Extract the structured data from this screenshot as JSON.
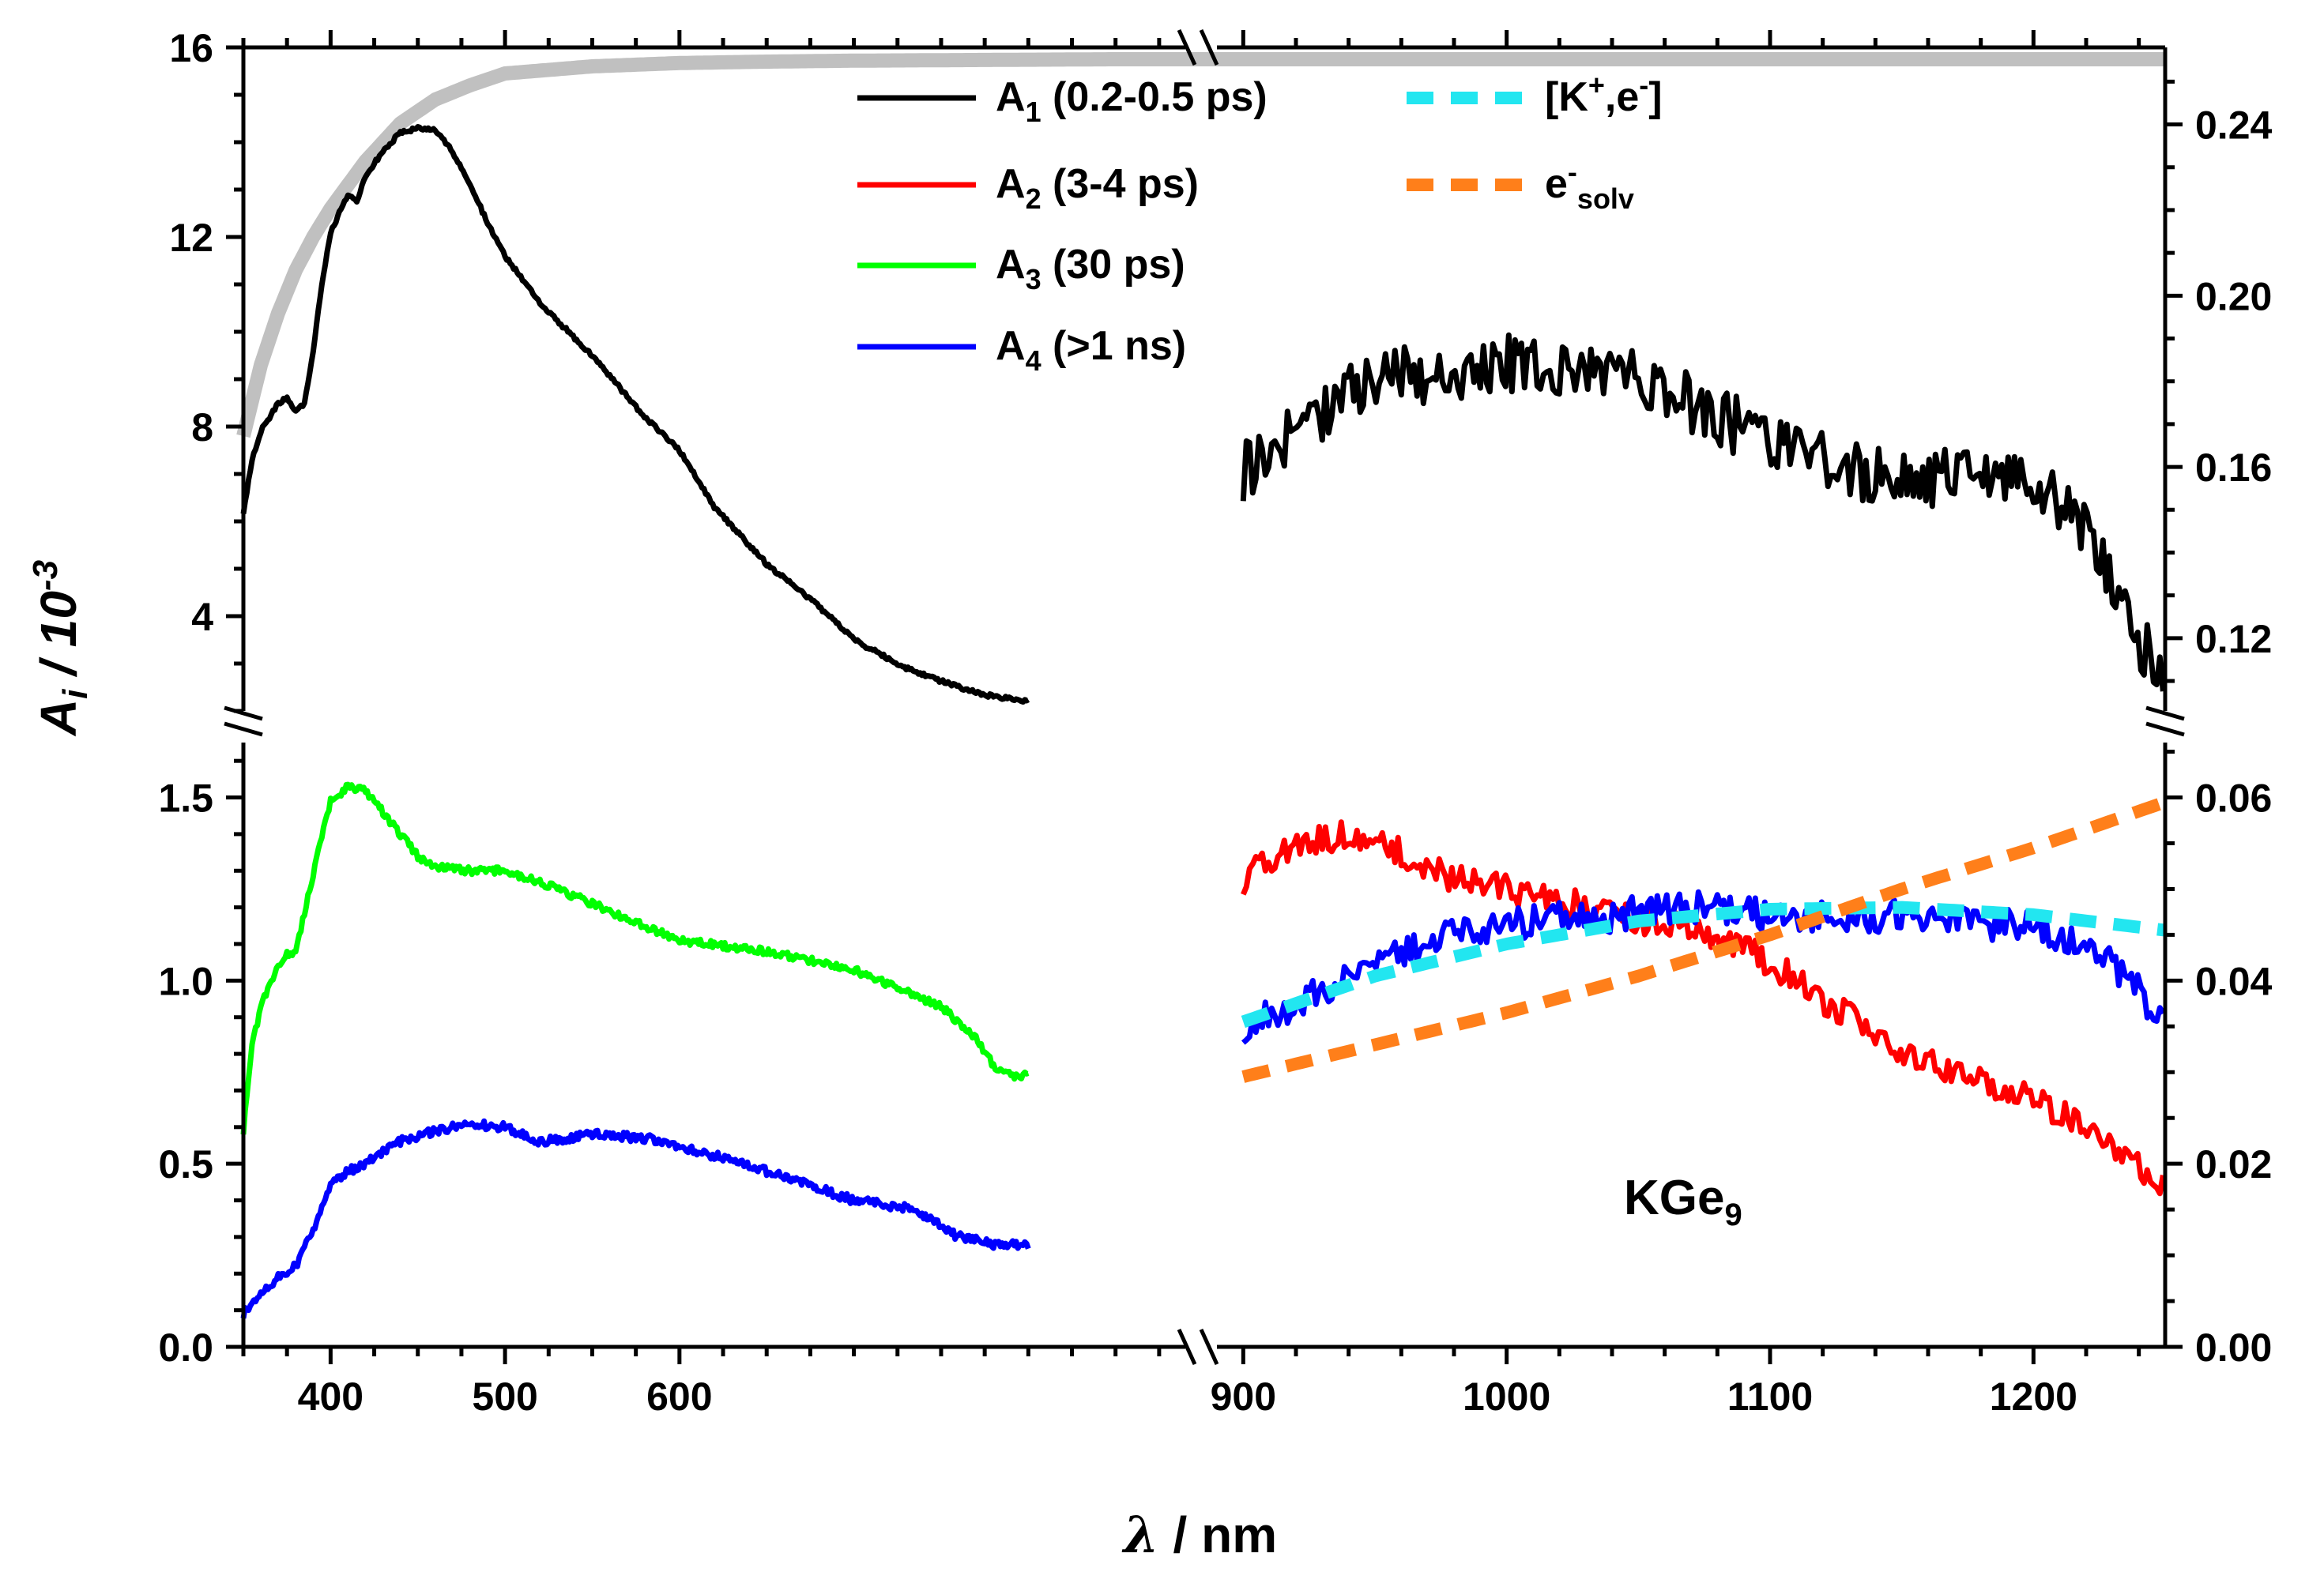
{
  "chart_data": {
    "type": "line",
    "title": "",
    "annotation": {
      "main": "KGe",
      "sub": "9"
    },
    "xlabel": {
      "symbol": "λ",
      "rest": " / nm"
    },
    "ylabel": {
      "symbol": "A",
      "sub": "i",
      "rest": " / 10",
      "sup": "-3"
    },
    "x_segments": [
      {
        "range": [
          350,
          890
        ],
        "ticks": [
          "400",
          "500",
          "600"
        ],
        "tick_values": [
          400,
          500,
          600
        ]
      },
      {
        "range": [
          890,
          1250
        ],
        "ticks": [
          "900",
          "1000",
          "1100",
          "1200"
        ],
        "tick_values": [
          900,
          1000,
          1100,
          1200
        ]
      }
    ],
    "y_left_upper": {
      "range": [
        2,
        16
      ],
      "ticks": [
        "4",
        "8",
        "12",
        "16"
      ],
      "tick_values": [
        4,
        8,
        12,
        16
      ]
    },
    "y_left_lower": {
      "range": [
        0,
        1.65
      ],
      "ticks": [
        "0.0",
        "0.5",
        "1.0",
        "1.5"
      ],
      "tick_values": [
        0,
        0.5,
        1.0,
        1.5
      ]
    },
    "y_right_upper": {
      "range": [
        0.103,
        0.258
      ],
      "ticks": [
        "0.12",
        "0.16",
        "0.20",
        "0.24"
      ],
      "tick_values": [
        0.12,
        0.16,
        0.2,
        0.24
      ]
    },
    "y_right_lower": {
      "range": [
        0,
        0.066
      ],
      "ticks": [
        "0.00",
        "0.02",
        "0.04",
        "0.06"
      ],
      "tick_values": [
        0,
        0.02,
        0.04,
        0.06
      ]
    },
    "legend": [
      {
        "key": "A1",
        "main": "A",
        "sub": "1",
        "rest": " (0.2-0.5 ps)",
        "color": "#000000",
        "style": "solid"
      },
      {
        "key": "A2",
        "main": "A",
        "sub": "2",
        "rest": " (3-4 ps)",
        "color": "#ff0000",
        "style": "solid"
      },
      {
        "key": "A3",
        "main": "A",
        "sub": "3",
        "rest": " (30 ps)",
        "color": "#00ff00",
        "style": "solid"
      },
      {
        "key": "A4",
        "main": "A",
        "sub": "4",
        "rest": " (>1 ns)",
        "color": "#0000ff",
        "style": "solid"
      },
      {
        "key": "Ke",
        "main": "[K",
        "sup": "+",
        "rest": ",e",
        "sup2": "-",
        "end": "]",
        "color": "#22e6f0",
        "style": "dashed"
      },
      {
        "key": "esolv",
        "main": "e",
        "sup": "-",
        "sub": "solv",
        "color": "#ff7f1a",
        "style": "dashed"
      }
    ],
    "series": [
      {
        "name": "gray reference",
        "color": "#c0c0c0",
        "panel": "upper",
        "axis": "left",
        "width": 18,
        "x": [
          350,
          360,
          370,
          380,
          390,
          400,
          420,
          440,
          460,
          480,
          500,
          550,
          600,
          650,
          700,
          750,
          800,
          850,
          890,
          900,
          1000,
          1100,
          1200,
          1250
        ],
        "y": [
          7.8,
          9.3,
          10.4,
          11.3,
          12.0,
          12.6,
          13.6,
          14.4,
          14.9,
          15.2,
          15.45,
          15.6,
          15.67,
          15.7,
          15.72,
          15.73,
          15.74,
          15.75,
          15.75,
          15.75,
          15.75,
          15.75,
          15.75,
          15.75
        ]
      },
      {
        "name": "A1 (0.2-0.5 ps)",
        "color": "#000000",
        "panel": "upper",
        "axis": "left",
        "noise": 0.04,
        "x": [
          350,
          355,
          360,
          370,
          375,
          380,
          385,
          390,
          395,
          400,
          410,
          415,
          420,
          430,
          440,
          450,
          460,
          470,
          480,
          490,
          500,
          520,
          550,
          580,
          600,
          620,
          650,
          680,
          700,
          730,
          760,
          780,
          800
        ],
        "y": [
          6.2,
          7.3,
          7.9,
          8.5,
          8.6,
          8.3,
          8.5,
          9.6,
          11.0,
          12.1,
          12.9,
          12.75,
          13.3,
          13.8,
          14.2,
          14.3,
          14.25,
          13.8,
          13.1,
          12.3,
          11.6,
          10.6,
          9.5,
          8.2,
          7.5,
          6.3,
          5.1,
          4.2,
          3.5,
          2.9,
          2.5,
          2.3,
          2.2
        ]
      },
      {
        "name": "A1 NIR",
        "color": "#000000",
        "panel": "upper",
        "axis": "right",
        "noise": 0.007,
        "seed": 11,
        "x": [
          900,
          920,
          940,
          960,
          980,
          1000,
          1020,
          1040,
          1060,
          1080,
          1100,
          1120,
          1140,
          1160,
          1180,
          1200,
          1220,
          1230,
          1240,
          1250
        ],
        "y": [
          0.159,
          0.168,
          0.178,
          0.182,
          0.181,
          0.184,
          0.182,
          0.183,
          0.178,
          0.172,
          0.166,
          0.161,
          0.158,
          0.157,
          0.158,
          0.157,
          0.146,
          0.132,
          0.12,
          0.109
        ]
      },
      {
        "name": "A3 (30 ps)",
        "color": "#00ff00",
        "panel": "lower",
        "axis": "left",
        "noise": 0.01,
        "x": [
          350,
          355,
          360,
          370,
          375,
          380,
          390,
          400,
          410,
          420,
          430,
          440,
          450,
          460,
          480,
          500,
          520,
          550,
          580,
          600,
          650,
          700,
          750,
          770,
          780,
          790,
          800
        ],
        "y": [
          0.59,
          0.82,
          0.93,
          1.04,
          1.07,
          1.08,
          1.29,
          1.49,
          1.53,
          1.52,
          1.46,
          1.4,
          1.34,
          1.31,
          1.3,
          1.3,
          1.27,
          1.21,
          1.15,
          1.11,
          1.08,
          1.03,
          0.93,
          0.84,
          0.77,
          0.74,
          0.74
        ]
      },
      {
        "name": "A4 (>1 ns)",
        "color": "#0000ff",
        "panel": "lower",
        "axis": "left",
        "noise": 0.012,
        "seed": 7,
        "x": [
          350,
          360,
          370,
          380,
          390,
          400,
          410,
          420,
          440,
          460,
          480,
          500,
          520,
          550,
          580,
          600,
          650,
          700,
          730,
          750,
          760,
          780,
          800
        ],
        "y": [
          0.09,
          0.15,
          0.19,
          0.22,
          0.32,
          0.44,
          0.48,
          0.5,
          0.56,
          0.59,
          0.61,
          0.6,
          0.56,
          0.58,
          0.57,
          0.55,
          0.48,
          0.4,
          0.38,
          0.33,
          0.3,
          0.28,
          0.28
        ]
      },
      {
        "name": "A2 (3-4 ps)",
        "color": "#ff0000",
        "panel": "lower",
        "axis": "right",
        "noise": 0.0016,
        "seed": 3,
        "x": [
          900,
          920,
          940,
          960,
          980,
          1000,
          1020,
          1040,
          1060,
          1080,
          1100,
          1120,
          1140,
          1160,
          1180,
          1200,
          1220,
          1240,
          1250
        ],
        "y": [
          0.051,
          0.055,
          0.056,
          0.054,
          0.051,
          0.05,
          0.049,
          0.047,
          0.046,
          0.045,
          0.042,
          0.038,
          0.034,
          0.031,
          0.029,
          0.027,
          0.024,
          0.02,
          0.017
        ]
      },
      {
        "name": "A4 NIR",
        "color": "#0000ff",
        "panel": "lower",
        "axis": "right",
        "noise": 0.0018,
        "seed": 19,
        "x": [
          900,
          920,
          940,
          960,
          980,
          1000,
          1020,
          1040,
          1060,
          1080,
          1100,
          1120,
          1140,
          1160,
          1180,
          1200,
          1220,
          1240,
          1250
        ],
        "y": [
          0.035,
          0.037,
          0.041,
          0.043,
          0.045,
          0.046,
          0.047,
          0.047,
          0.048,
          0.048,
          0.047,
          0.047,
          0.047,
          0.047,
          0.046,
          0.046,
          0.044,
          0.039,
          0.035
        ]
      },
      {
        "name": "[K+,e-]",
        "color": "#22e6f0",
        "panel": "lower",
        "axis": "right",
        "dashed": true,
        "x": [
          900,
          950,
          1000,
          1050,
          1100,
          1150,
          1200,
          1250
        ],
        "y": [
          0.0355,
          0.0405,
          0.044,
          0.0465,
          0.0478,
          0.048,
          0.0472,
          0.0455
        ]
      },
      {
        "name": "e-solv",
        "color": "#ff7f1a",
        "panel": "lower",
        "axis": "right",
        "dashed": true,
        "x": [
          900,
          950,
          1000,
          1050,
          1100,
          1150,
          1200,
          1250
        ],
        "y": [
          0.0295,
          0.033,
          0.0365,
          0.0405,
          0.045,
          0.05,
          0.0545,
          0.0595
        ]
      }
    ]
  }
}
